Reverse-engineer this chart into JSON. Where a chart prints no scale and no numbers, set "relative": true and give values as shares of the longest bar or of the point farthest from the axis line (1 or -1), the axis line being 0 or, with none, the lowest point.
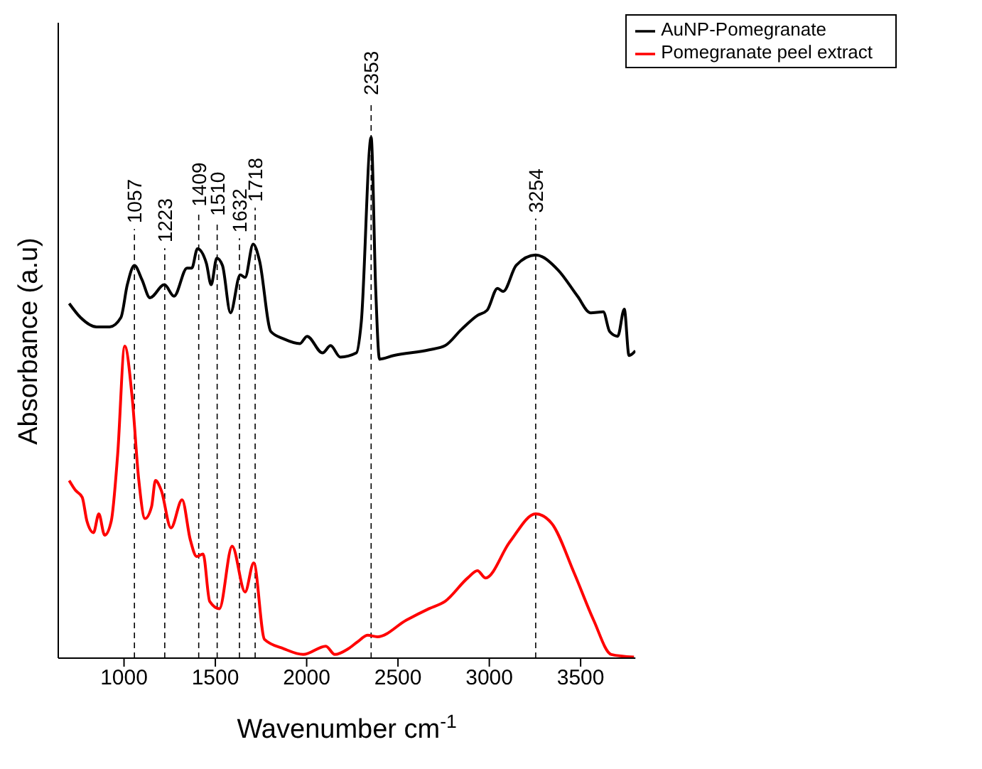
{
  "chart_data": {
    "type": "line",
    "relative": true,
    "xlabel": "Wavenumber cm$^{-1}$",
    "ylabel": "Absorbance (a.u)",
    "xlim": [
      640,
      3800
    ],
    "xticks": [
      1000,
      1500,
      2000,
      2500,
      3000,
      3500
    ],
    "legend": "top right",
    "line_style": "solid",
    "marker": "none",
    "series": [
      {
        "name": "AuNP-Pomegranate",
        "color": "#000000",
        "x": [
          700,
          762,
          850,
          921,
          983,
          1018,
          1057,
          1098,
          1142,
          1221,
          1274,
          1345,
          1371,
          1402,
          1451,
          1477,
          1508,
          1539,
          1583,
          1636,
          1663,
          1707,
          1742,
          1804,
          1875,
          1963,
          2002,
          2087,
          2131,
          2184,
          2272,
          2299,
          2353,
          2378,
          2399,
          2476,
          2670,
          2758,
          2847,
          2935,
          2988,
          3045,
          3076,
          3147,
          3254,
          3377,
          3483,
          3554,
          3624,
          3659,
          3703,
          3739,
          3765,
          3800
        ],
        "values": [
          0.681,
          0.654,
          0.636,
          0.636,
          0.654,
          0.717,
          0.754,
          0.727,
          0.692,
          0.717,
          0.695,
          0.749,
          0.749,
          0.786,
          0.758,
          0.717,
          0.768,
          0.754,
          0.663,
          0.736,
          0.731,
          0.795,
          0.763,
          0.627,
          0.613,
          0.604,
          0.618,
          0.586,
          0.6,
          0.578,
          0.586,
          0.645,
          1.0,
          0.708,
          0.574,
          0.581,
          0.592,
          0.6,
          0.631,
          0.658,
          0.668,
          0.71,
          0.704,
          0.754,
          0.774,
          0.745,
          0.695,
          0.663,
          0.665,
          0.627,
          0.618,
          0.67,
          0.581,
          0.59
        ]
      },
      {
        "name": "Pomegranate peel extract",
        "color": "#ff0000",
        "x": [
          700,
          735,
          771,
          797,
          833,
          862,
          894,
          930,
          965,
          1004,
          1045,
          1080,
          1115,
          1151,
          1172,
          1204,
          1257,
          1318,
          1363,
          1398,
          1433,
          1469,
          1522,
          1592,
          1663,
          1710,
          1769,
          1875,
          1981,
          2105,
          2154,
          2228,
          2281,
          2334,
          2387,
          2546,
          2670,
          2758,
          2882,
          2935,
          2979,
          3112,
          3254,
          3341,
          3465,
          3571,
          3668,
          3792
        ],
        "values": [
          0.341,
          0.322,
          0.309,
          0.263,
          0.241,
          0.277,
          0.236,
          0.263,
          0.39,
          0.599,
          0.499,
          0.345,
          0.268,
          0.291,
          0.341,
          0.322,
          0.25,
          0.304,
          0.227,
          0.195,
          0.2,
          0.109,
          0.095,
          0.215,
          0.127,
          0.183,
          0.036,
          0.018,
          0.007,
          0.023,
          0.007,
          0.018,
          0.032,
          0.044,
          0.041,
          0.073,
          0.095,
          0.109,
          0.154,
          0.168,
          0.154,
          0.223,
          0.277,
          0.259,
          0.163,
          0.073,
          0.007,
          0.002
        ]
      }
    ],
    "ref_lines": [
      {
        "axis": "x",
        "value": 1057,
        "label": "1057",
        "line_style": "dashed"
      },
      {
        "axis": "x",
        "value": 1223,
        "label": "1223",
        "line_style": "dashed"
      },
      {
        "axis": "x",
        "value": 1409,
        "label": "1409",
        "line_style": "dashed"
      },
      {
        "axis": "x",
        "value": 1510,
        "label": "1510",
        "line_style": "dashed"
      },
      {
        "axis": "x",
        "value": 1632,
        "label": "1632",
        "line_style": "dashed"
      },
      {
        "axis": "x",
        "value": 1718,
        "label": "1718",
        "line_style": "dashed"
      },
      {
        "axis": "x",
        "value": 2353,
        "label": "2353",
        "line_style": "dashed"
      },
      {
        "axis": "x",
        "value": 3254,
        "label": "3254",
        "line_style": "dashed"
      }
    ]
  }
}
